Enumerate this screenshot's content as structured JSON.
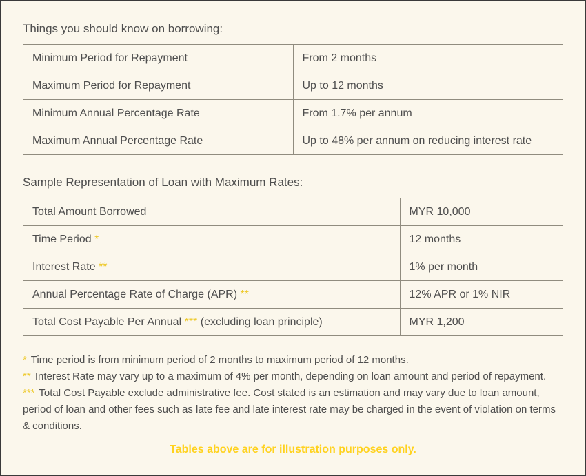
{
  "colors": {
    "page_background": "#FBF7EC",
    "outer_border": "#3A3A3A",
    "table_border": "#908C7F",
    "body_text": "#4E4E4E",
    "marker_yellow": "#EDC827",
    "disclaimer_yellow": "#FFD21E"
  },
  "borrowing_table": {
    "heading": "Things you should know on borrowing:",
    "rows": [
      {
        "label": "Minimum Period for Repayment",
        "value": "From 2 months"
      },
      {
        "label": "Maximum Period for Repayment",
        "value": "Up to 12 months"
      },
      {
        "label": "Minimum Annual Percentage Rate",
        "value": "From 1.7% per annum"
      },
      {
        "label": "Maximum Annual Percentage Rate",
        "value": "Up to 48% per annum on reducing interest rate"
      }
    ]
  },
  "sample_table": {
    "heading": "Sample Representation of Loan with Maximum Rates:",
    "rows": [
      {
        "label": "Total Amount Borrowed",
        "marker": "",
        "suffix": "",
        "value": "MYR 10,000"
      },
      {
        "label": "Time Period",
        "marker": "*",
        "suffix": "",
        "value": "12 months"
      },
      {
        "label": "Interest Rate",
        "marker": "**",
        "suffix": "",
        "value": "1% per month"
      },
      {
        "label": "Annual Percentage Rate of Charge (APR)",
        "marker": "**",
        "suffix": "",
        "value": "12% APR or 1% NIR"
      },
      {
        "label": "Total Cost Payable Per Annual",
        "marker": "***",
        "suffix": "(excluding loan principle)",
        "value": "MYR 1,200"
      }
    ]
  },
  "footnotes": [
    {
      "marker": "*",
      "text": "Time period is from minimum period of 2 months to maximum period of 12 months."
    },
    {
      "marker": "**",
      "text": "Interest Rate may vary up to a maximum of 4% per month, depending on loan amount and period of repayment."
    },
    {
      "marker": "***",
      "text": "Total Cost Payable exclude administrative fee. Cost stated is an estimation and may vary due to loan amount, period of loan and other fees such as late fee and late interest rate may be charged in the event of violation on terms & conditions."
    }
  ],
  "disclaimer": "Tables above are for illustration purposes only."
}
